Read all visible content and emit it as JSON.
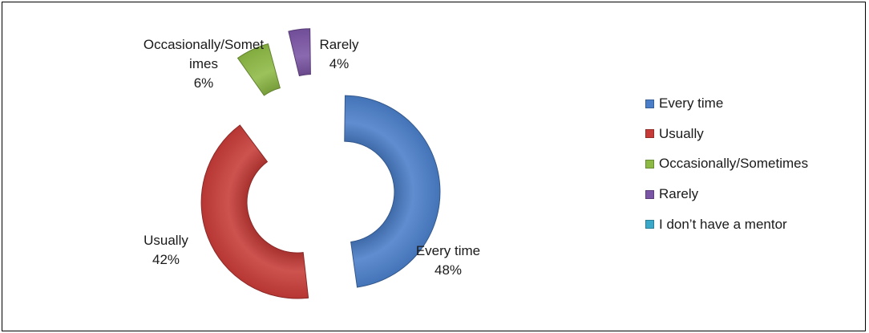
{
  "chart_data": {
    "type": "pie",
    "variant": "exploded-doughnut",
    "title": "",
    "categories": [
      "Every time",
      "Usually",
      "Occasionally/Sometimes",
      "Rarely",
      "I don’t have a mentor"
    ],
    "values": [
      48,
      42,
      6,
      4,
      0
    ],
    "units": "%",
    "colors": [
      "#4a7ec8",
      "#c63b37",
      "#8dba45",
      "#7b55a5",
      "#3aa9c9"
    ],
    "data_labels": [
      {
        "lines": [
          "Every time",
          "48%"
        ]
      },
      {
        "lines": [
          "Usually",
          "42%"
        ]
      },
      {
        "lines": [
          "Occasionally/Somet",
          "imes",
          "6%"
        ]
      },
      {
        "lines": [
          "Rarely",
          "4%"
        ]
      }
    ],
    "legend": {
      "position": "right",
      "entries": [
        "Every time",
        "Usually",
        "Occasionally/Sometimes",
        "Rarely",
        "I don’t have a mentor"
      ]
    }
  }
}
